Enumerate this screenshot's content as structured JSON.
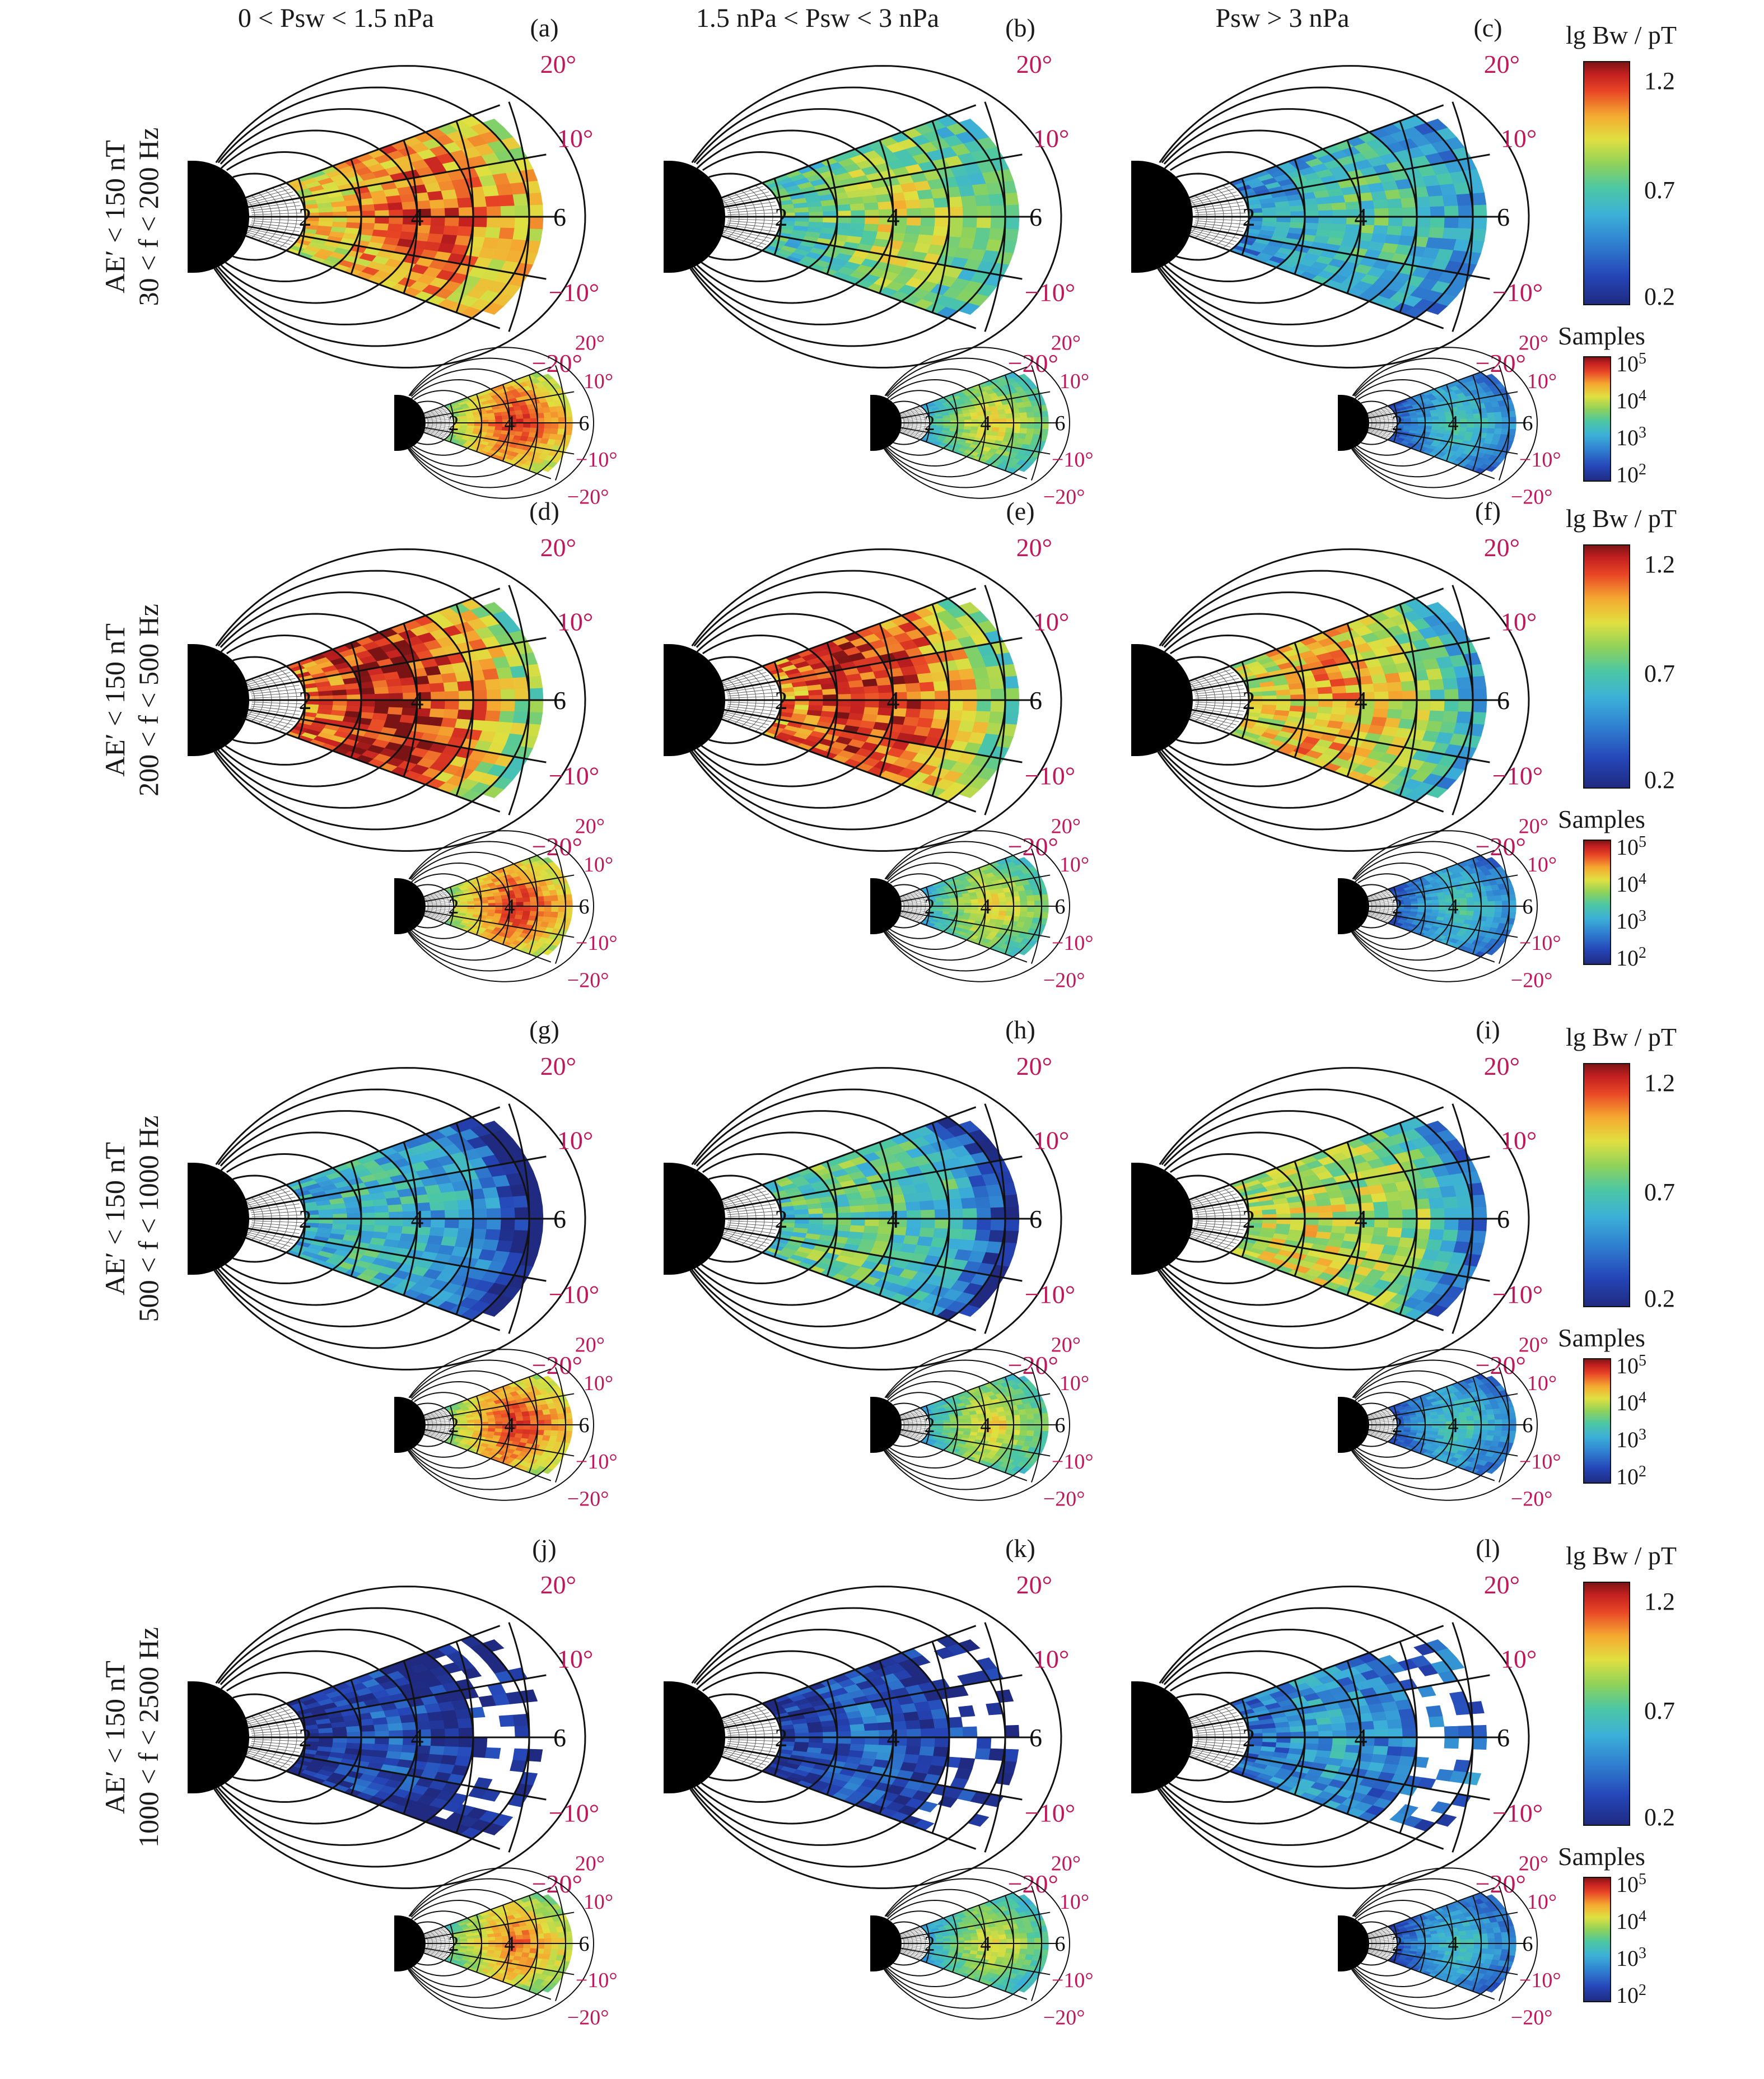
{
  "columns": [
    {
      "label": "0 < Psw < 1.5 nPa"
    },
    {
      "label": "1.5 nPa < Psw < 3 nPa"
    },
    {
      "label": "Psw > 3 nPa"
    }
  ],
  "rows": [
    {
      "condition": "AE′ < 150 nT",
      "band": "30 < f < 200 Hz"
    },
    {
      "condition": "AE′ < 150 nT",
      "band": "200 < f < 500 Hz"
    },
    {
      "condition": "AE′ < 150 nT",
      "band": "500 < f < 1000 Hz"
    },
    {
      "condition": "AE′ < 150 nT",
      "band": "1000 < f < 2500 Hz"
    }
  ],
  "panel_letters": [
    "(a)",
    "(b)",
    "(c)",
    "(d)",
    "(e)",
    "(f)",
    "(g)",
    "(h)",
    "(i)",
    "(j)",
    "(k)",
    "(l)"
  ],
  "map_labels": {
    "L_values": [
      "2",
      "4",
      "6"
    ],
    "latitudes": [
      "20°",
      "10°",
      "−10°",
      "−20°"
    ]
  },
  "colorbar_amplitude": {
    "title": "lg Bw / pT",
    "ticks": [
      "1.2",
      "0.7",
      "0.2"
    ],
    "range": [
      0.2,
      1.25
    ]
  },
  "colorbar_samples": {
    "title": "Samples",
    "ticks": [
      "10^5",
      "10^4",
      "10^3",
      "10^2"
    ],
    "range": [
      2,
      5
    ]
  },
  "colors": {
    "latitude_label": "#c0185a",
    "earth": "#000000",
    "grid": "#000000"
  },
  "chart_data": {
    "type": "heatmap",
    "description_axes": {
      "radial": "L shell (2, 4, 6)",
      "angular": "magnetic latitude (−20° to 20°)"
    },
    "amplitude_level_mean_lgBw_pT": [
      [
        0.95,
        0.72,
        0.55
      ],
      [
        1.05,
        1.02,
        0.85
      ],
      [
        0.55,
        0.65,
        0.8
      ],
      [
        0.25,
        0.3,
        0.45
      ]
    ],
    "samples_level_mean_log10": [
      [
        4.2,
        3.6,
        2.9
      ],
      [
        4.2,
        3.6,
        2.9
      ],
      [
        4.2,
        3.6,
        2.9
      ],
      [
        4.0,
        3.5,
        2.8
      ]
    ]
  }
}
